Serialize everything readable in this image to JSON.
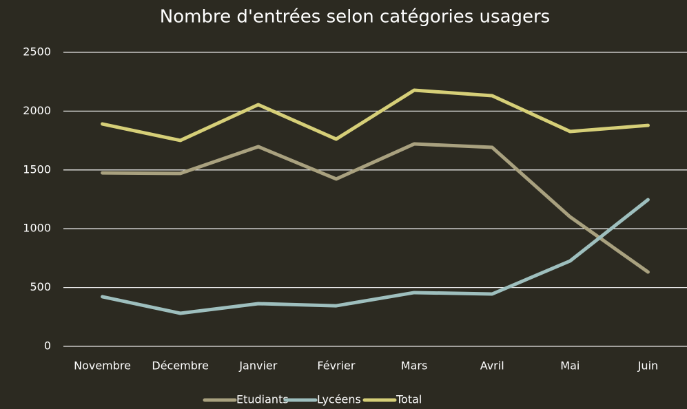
{
  "chart_data": {
    "type": "line",
    "title": "Nombre d'entrées selon catégories usagers",
    "categories": [
      "Novembre",
      "Décembre",
      "Janvier",
      "Février",
      "Mars",
      "Avril",
      "Mai",
      "Juin"
    ],
    "series": [
      {
        "name": "Etudiants",
        "color": "#a9a17f",
        "values": [
          1475,
          1470,
          1698,
          1423,
          1721,
          1692,
          1101,
          632
        ]
      },
      {
        "name": "Lycéens",
        "color": "#9ebfbe",
        "values": [
          422,
          281,
          363,
          345,
          457,
          445,
          726,
          1247
        ]
      },
      {
        "name": "Total",
        "color": "#d6cf78",
        "values": [
          1891,
          1751,
          2055,
          1762,
          2178,
          2131,
          1827,
          1879
        ]
      }
    ],
    "ylim": [
      0,
      2500
    ],
    "yticks": [
      0,
      500,
      1000,
      1500,
      2000,
      2500
    ],
    "grid": true,
    "legend": "bottom"
  }
}
